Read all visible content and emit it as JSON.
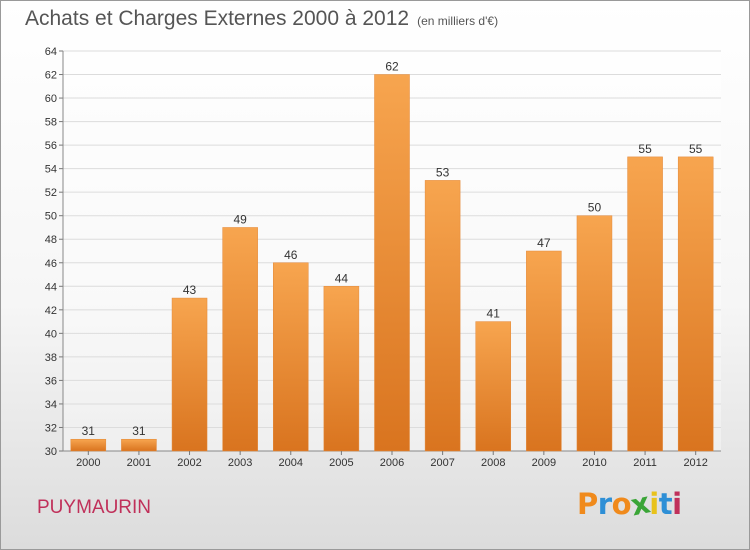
{
  "header": {
    "title": "Achats et Charges Externes 2000 à 2012",
    "unit": "(en milliers d'€)"
  },
  "footer": {
    "commune": "PUYMAURIN",
    "logo_text": "Proxiti"
  },
  "colors": {
    "bar_light": "#f7a54f",
    "bar_dark": "#d9741f",
    "commune": "#c0305a",
    "logo": [
      "#f08a1c",
      "#2e8fd6",
      "#f08a1c",
      "#3aa537",
      "#e8c21b",
      "#2e8fd6",
      "#c0305a"
    ]
  },
  "chart_data": {
    "type": "bar",
    "title": "Achats et Charges Externes 2000 à 2012",
    "subtitle": "(en milliers d'€)",
    "xlabel": "",
    "ylabel": "",
    "categories": [
      "2000",
      "2001",
      "2002",
      "2003",
      "2004",
      "2005",
      "2006",
      "2007",
      "2008",
      "2009",
      "2010",
      "2011",
      "2012"
    ],
    "values": [
      31,
      31,
      43,
      49,
      46,
      44,
      62,
      53,
      41,
      47,
      50,
      55,
      55
    ],
    "ylim": [
      30,
      64
    ],
    "yticks": [
      30,
      32,
      34,
      36,
      38,
      40,
      42,
      44,
      46,
      48,
      50,
      52,
      54,
      56,
      58,
      60,
      62,
      64
    ],
    "grid": true,
    "legend": "none"
  }
}
